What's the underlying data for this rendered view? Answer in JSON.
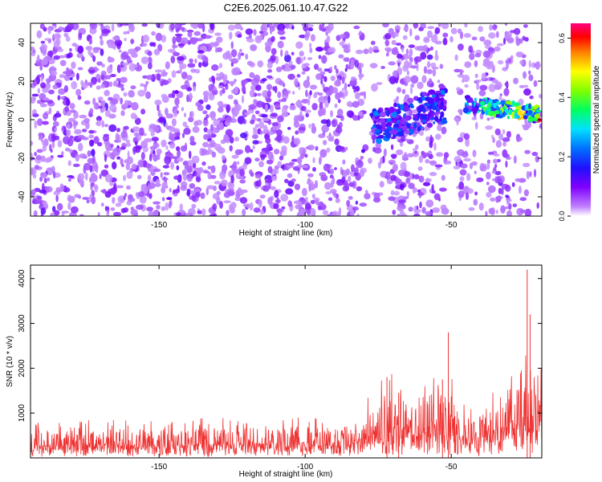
{
  "title": "C2E6.2025.061.10.47.G22",
  "chart_data": [
    {
      "type": "heatmap",
      "xlabel": "Height of straight line (km)",
      "ylabel": "Frequency (Hz)",
      "xlim": [
        -194,
        -19
      ],
      "ylim": [
        -50,
        50
      ],
      "x_ticks": [
        -150,
        -100,
        -50
      ],
      "y_ticks": [
        -40,
        -20,
        0,
        20,
        40
      ],
      "colorbar": {
        "label": "Normalized spectral amplitude",
        "range": [
          0,
          0.65
        ],
        "ticks": [
          0.0,
          0.2,
          0.4,
          0.6
        ],
        "colormap": [
          "#ffffff",
          "#a000ff",
          "#2000ff",
          "#0080ff",
          "#00ffff",
          "#00ff40",
          "#c0ff00",
          "#ffff00",
          "#ff8000",
          "#ff0000",
          "#ff0080"
        ]
      },
      "features": [
        {
          "x_range": [
            -77,
            -52
          ],
          "freq_center_start": -4,
          "freq_center_end": 8,
          "amplitude": 0.25
        },
        {
          "x_range": [
            -45,
            -20
          ],
          "freq_center_start": 8,
          "freq_center_end": 3,
          "amplitude": 0.6
        }
      ],
      "background_amplitude": 0.05
    },
    {
      "type": "line",
      "xlabel": "Height of straight line (km)",
      "ylabel": "SNR (10 * v/v)",
      "xlim": [
        -194,
        -19
      ],
      "ylim": [
        0,
        4300
      ],
      "x_ticks": [
        -150,
        -100,
        -50
      ],
      "y_ticks": [
        1000,
        2000,
        3000,
        4000
      ],
      "color": "#ee3333",
      "envelope": [
        {
          "x": -194,
          "low": 0,
          "high": 620
        },
        {
          "x": -170,
          "low": 0,
          "high": 640
        },
        {
          "x": -140,
          "low": 0,
          "high": 650
        },
        {
          "x": -110,
          "low": 0,
          "high": 700
        },
        {
          "x": -90,
          "low": 0,
          "high": 750
        },
        {
          "x": -80,
          "low": 0,
          "high": 900
        },
        {
          "x": -72,
          "low": 0,
          "high": 1400
        },
        {
          "x": -60,
          "low": 0,
          "high": 1350
        },
        {
          "x": -53,
          "low": 0,
          "high": 1700
        },
        {
          "x": -45,
          "low": 0,
          "high": 850
        },
        {
          "x": -35,
          "low": 0,
          "high": 1100
        },
        {
          "x": -28,
          "low": 0,
          "high": 1700
        },
        {
          "x": -24,
          "low": 0,
          "high": 1800
        },
        {
          "x": -19,
          "low": 0,
          "high": 2800
        }
      ],
      "peaks": [
        {
          "x": -72,
          "y": 1800
        },
        {
          "x": -68,
          "y": 1450
        },
        {
          "x": -53,
          "y": 1750
        },
        {
          "x": -51,
          "y": 2800
        },
        {
          "x": -24,
          "y": 4200
        },
        {
          "x": -23,
          "y": 3200
        },
        {
          "x": -19,
          "y": 2900
        }
      ]
    }
  ]
}
